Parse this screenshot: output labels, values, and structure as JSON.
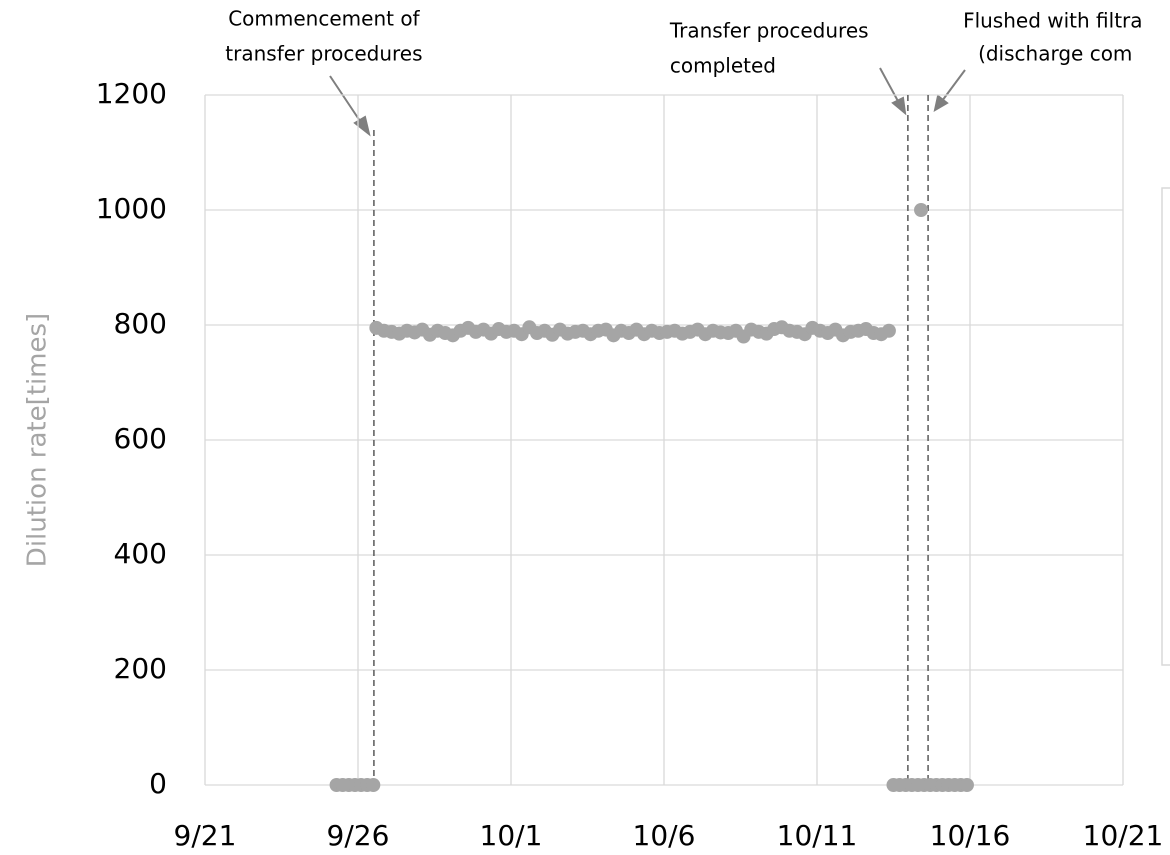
{
  "chart_data": {
    "type": "scatter",
    "y_label": "Dilution rate[times]",
    "xlim": [
      21,
      51
    ],
    "xticks": [
      {
        "value": 21,
        "label": "9/21"
      },
      {
        "value": 26,
        "label": "9/26"
      },
      {
        "value": 31,
        "label": "10/1"
      },
      {
        "value": 36,
        "label": "10/6"
      },
      {
        "value": 41,
        "label": "10/11"
      },
      {
        "value": 46,
        "label": "10/16"
      },
      {
        "value": 51,
        "label": "10/21"
      }
    ],
    "ylim": [
      0,
      1200
    ],
    "yticks": [
      0,
      200,
      400,
      600,
      800,
      1000,
      1200
    ],
    "grid": true,
    "series": [
      {
        "color": "#a5a5a5",
        "x": [
          25.3,
          25.5,
          25.7,
          25.9,
          26.1,
          26.3,
          26.5,
          26.6,
          26.85,
          27.1,
          27.35,
          27.6,
          27.85,
          28.1,
          28.35,
          28.6,
          28.85,
          29.1,
          29.35,
          29.6,
          29.85,
          30.1,
          30.35,
          30.6,
          30.85,
          31.1,
          31.35,
          31.6,
          31.85,
          32.1,
          32.35,
          32.6,
          32.85,
          33.1,
          33.35,
          33.6,
          33.85,
          34.1,
          34.35,
          34.6,
          34.85,
          35.1,
          35.35,
          35.6,
          35.85,
          36.1,
          36.35,
          36.6,
          36.85,
          37.1,
          37.35,
          37.6,
          37.85,
          38.1,
          38.35,
          38.6,
          38.85,
          39.1,
          39.35,
          39.6,
          39.85,
          40.1,
          40.35,
          40.6,
          40.85,
          41.1,
          41.35,
          41.6,
          41.85,
          42.1,
          42.35,
          42.6,
          42.85,
          43.1,
          43.35,
          44.4,
          43.5,
          43.7,
          43.9,
          44.1,
          44.3,
          44.5,
          44.7,
          44.9,
          45.1,
          45.3,
          45.5,
          45.7,
          45.9
        ],
        "values": [
          0,
          0,
          0,
          0,
          0,
          0,
          0,
          795,
          790,
          788,
          785,
          790,
          787,
          792,
          783,
          790,
          786,
          782,
          790,
          795,
          788,
          792,
          785,
          793,
          788,
          790,
          784,
          796,
          786,
          790,
          783,
          792,
          785,
          788,
          790,
          784,
          790,
          792,
          782,
          790,
          786,
          792,
          784,
          790,
          786,
          788,
          790,
          785,
          788,
          792,
          784,
          790,
          787,
          786,
          790,
          780,
          792,
          788,
          785,
          793,
          796,
          790,
          788,
          784,
          795,
          790,
          786,
          792,
          782,
          788,
          790,
          793,
          786,
          784,
          790,
          1000,
          0,
          0,
          0,
          0,
          0,
          0,
          0,
          0,
          0,
          0,
          0,
          0,
          0
        ]
      }
    ],
    "annotations": [
      {
        "lines": [
          "Commencement of",
          "transfer procedures"
        ],
        "x": 26.52
      },
      {
        "lines": [
          "Transfer procedures",
          "completed"
        ],
        "x": 43.97
      },
      {
        "lines": [
          "Flushed with filtra",
          "(discharge com"
        ],
        "x": 44.63
      }
    ]
  }
}
